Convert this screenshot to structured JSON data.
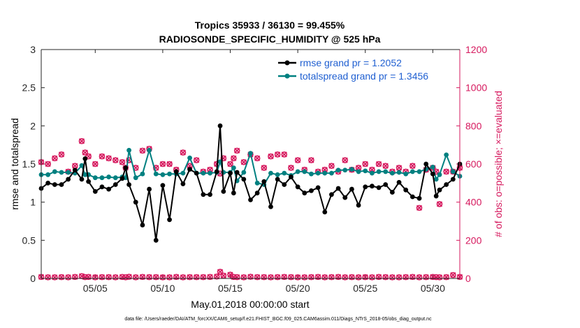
{
  "chart_data": {
    "type": "line",
    "title": "Tropics 35933 / 36130 = 99.455%",
    "subtitle": "RADIOSONDE_SPECIFIC_HUMIDITY @ 525 hPa",
    "xlabel": "May.01,2018 00:00:00 start",
    "ylabel": "rmse and totalspread",
    "ylabel_right": "# of obs: o=possible; ×=evaluated",
    "footer": "data file: /Users/raeder/DAI/ATM_forcXX/CAM6_setup/f.e21.FHIST_BGC.f09_025.CAM6assim.011/Diags_NTrS_2018-05/obs_diag_output.nc",
    "xlim": [
      1,
      32
    ],
    "ylim": [
      0,
      3
    ],
    "ylim_right": [
      0,
      1200
    ],
    "x_ticks": [
      5,
      10,
      15,
      20,
      25,
      30
    ],
    "x_tick_labels": [
      "05/05",
      "05/10",
      "05/15",
      "05/20",
      "05/25",
      "05/30"
    ],
    "y_ticks": [
      "0",
      "0.5",
      "1",
      "1.5",
      "2",
      "2.5",
      "3"
    ],
    "y_right_ticks": [
      "0",
      "200",
      "400",
      "600",
      "800",
      "1000",
      "1200"
    ],
    "legend_position": "top-right",
    "x": [
      1.0,
      1.5,
      2.0,
      2.5,
      3.0,
      3.5,
      4.0,
      4.25,
      4.5,
      5.0,
      5.5,
      6.0,
      6.5,
      7.0,
      7.25,
      7.5,
      8.0,
      8.5,
      9.0,
      9.5,
      10.0,
      10.5,
      11.0,
      11.5,
      12.0,
      12.5,
      13.0,
      13.5,
      14.0,
      14.25,
      14.5,
      15.0,
      15.25,
      15.5,
      16.0,
      16.5,
      17.0,
      17.5,
      18.0,
      18.5,
      19.0,
      19.5,
      20.0,
      20.5,
      21.0,
      21.5,
      22.0,
      22.5,
      23.0,
      23.5,
      24.0,
      24.5,
      25.0,
      25.5,
      26.0,
      26.5,
      27.0,
      27.5,
      28.0,
      28.5,
      29.0,
      29.5,
      30.0,
      30.25,
      30.5,
      31.0,
      31.5,
      32.0
    ],
    "series": [
      {
        "name": "rmse grand pr = 1.2052",
        "color": "#000000",
        "values": [
          1.18,
          1.25,
          1.23,
          1.23,
          1.3,
          1.42,
          1.3,
          1.57,
          1.27,
          1.14,
          1.2,
          1.17,
          1.23,
          1.31,
          1.45,
          1.23,
          1.0,
          0.7,
          1.17,
          0.5,
          1.22,
          0.77,
          1.4,
          1.24,
          1.43,
          1.38,
          1.1,
          1.1,
          1.4,
          2.0,
          1.14,
          1.38,
          1.12,
          1.39,
          1.3,
          1.03,
          1.12,
          1.27,
          0.94,
          1.3,
          1.23,
          1.33,
          1.2,
          1.12,
          1.15,
          1.19,
          0.87,
          1.1,
          1.18,
          1.06,
          1.17,
          0.96,
          1.2,
          1.21,
          1.19,
          1.23,
          1.13,
          1.26,
          1.16,
          1.07,
          1.05,
          1.5,
          1.37,
          1.08,
          1.16,
          1.23,
          1.3,
          1.5
        ]
      },
      {
        "name": "totalspread grand pr = 1.3456",
        "color": "#008080",
        "values": [
          1.36,
          1.36,
          1.4,
          1.39,
          1.39,
          1.38,
          1.48,
          1.36,
          1.36,
          1.32,
          1.32,
          1.33,
          1.32,
          1.33,
          1.32,
          1.68,
          1.32,
          1.37,
          1.68,
          1.37,
          1.36,
          1.37,
          1.37,
          1.38,
          1.58,
          1.38,
          1.38,
          1.38,
          1.39,
          1.53,
          1.39,
          1.39,
          1.45,
          1.28,
          1.39,
          1.64,
          1.25,
          1.23,
          1.38,
          1.36,
          1.38,
          1.35,
          1.4,
          1.4,
          1.37,
          1.38,
          1.38,
          1.38,
          1.42,
          1.42,
          1.43,
          1.4,
          1.41,
          1.38,
          1.4,
          1.4,
          1.38,
          1.39,
          1.37,
          1.4,
          1.4,
          1.43,
          1.46,
          1.3,
          1.36,
          1.62,
          1.4,
          1.34
        ]
      },
      {
        "name": "possible obs",
        "axis": "right",
        "color": "#d6195e",
        "values": [
          610,
          600,
          630,
          650,
          560,
          590,
          720,
          660,
          640,
          600,
          640,
          630,
          620,
          610,
          580,
          620,
          580,
          670,
          680,
          580,
          600,
          600,
          570,
          660,
          590,
          620,
          560,
          570,
          600,
          550,
          630,
          600,
          630,
          670,
          610,
          650,
          630,
          580,
          640,
          650,
          650,
          580,
          620,
          570,
          620,
          560,
          570,
          590,
          560,
          620,
          570,
          580,
          600,
          570,
          600,
          590,
          560,
          580,
          560,
          590,
          370,
          570,
          580,
          560,
          390,
          560,
          560,
          580
        ]
      },
      {
        "name": "evaluated obs",
        "axis": "right",
        "color": "#d6195e",
        "values": [
          8,
          6,
          6,
          7,
          6,
          8,
          12,
          7,
          8,
          6,
          7,
          7,
          6,
          8,
          6,
          9,
          6,
          8,
          7,
          7,
          6,
          6,
          8,
          6,
          7,
          7,
          7,
          8,
          10,
          35,
          15,
          20,
          8,
          7,
          6,
          9,
          7,
          7,
          6,
          7,
          8,
          7,
          6,
          6,
          7,
          8,
          6,
          7,
          8,
          6,
          7,
          6,
          7,
          6,
          8,
          7,
          6,
          6,
          7,
          8,
          6,
          7,
          8,
          7,
          6,
          7,
          18,
          8
        ]
      }
    ]
  }
}
